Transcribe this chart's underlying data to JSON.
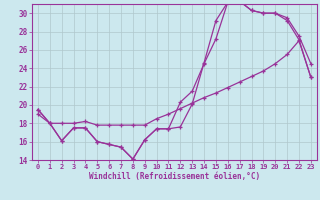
{
  "xlabel": "Windchill (Refroidissement éolien,°C)",
  "background_color": "#cce8ee",
  "line_color": "#993399",
  "grid_color": "#b0c8cc",
  "xlim": [
    -0.5,
    23.5
  ],
  "ylim": [
    14,
    31
  ],
  "yticks": [
    14,
    16,
    18,
    20,
    22,
    24,
    26,
    28,
    30
  ],
  "xticks": [
    0,
    1,
    2,
    3,
    4,
    5,
    6,
    7,
    8,
    9,
    10,
    11,
    12,
    13,
    14,
    15,
    16,
    17,
    18,
    19,
    20,
    21,
    22,
    23
  ],
  "curve1_x": [
    0,
    1,
    2,
    3,
    4,
    5,
    6,
    7,
    8,
    9,
    10,
    11,
    12,
    13,
    14,
    15,
    16,
    17,
    18,
    19,
    20,
    21,
    22,
    23
  ],
  "curve1_y": [
    19.5,
    18.0,
    16.1,
    17.5,
    17.5,
    16.0,
    15.7,
    15.4,
    14.1,
    16.2,
    17.4,
    17.4,
    17.6,
    20.1,
    24.6,
    29.2,
    31.2,
    31.3,
    30.3,
    30.0,
    30.0,
    29.2,
    27.1,
    23.0
  ],
  "curve2_x": [
    0,
    1,
    2,
    3,
    4,
    5,
    6,
    7,
    8,
    9,
    10,
    11,
    12,
    13,
    14,
    15,
    16,
    17,
    18,
    19,
    20,
    21,
    22,
    23
  ],
  "curve2_y": [
    19.5,
    18.0,
    16.1,
    17.5,
    17.5,
    16.0,
    15.7,
    15.4,
    14.1,
    16.2,
    17.4,
    17.4,
    20.3,
    21.5,
    24.5,
    27.2,
    31.2,
    31.3,
    30.3,
    30.0,
    30.0,
    29.5,
    27.5,
    24.5
  ],
  "curve3_x": [
    0,
    1,
    2,
    3,
    4,
    5,
    6,
    7,
    8,
    9,
    10,
    11,
    12,
    13,
    14,
    15,
    16,
    17,
    18,
    19,
    20,
    21,
    22,
    23
  ],
  "curve3_y": [
    19.0,
    18.0,
    18.0,
    18.0,
    18.2,
    17.8,
    17.8,
    17.8,
    17.8,
    17.8,
    18.5,
    19.0,
    19.6,
    20.2,
    20.8,
    21.3,
    21.9,
    22.5,
    23.1,
    23.7,
    24.5,
    25.5,
    27.0,
    23.0
  ]
}
